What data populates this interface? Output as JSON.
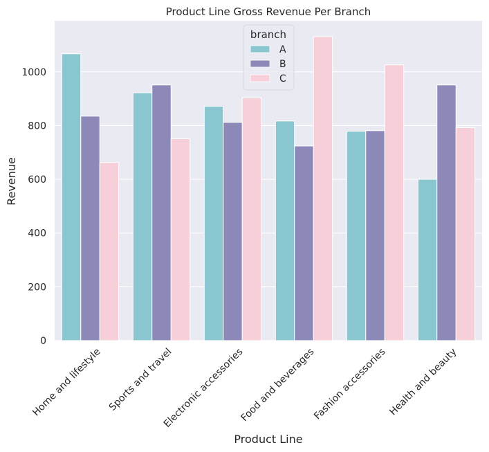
{
  "chart_data": {
    "type": "bar",
    "title": "Product Line Gross Revenue Per Branch",
    "xlabel": "Product Line",
    "ylabel": "Revenue",
    "categories": [
      "Home and lifestyle",
      "Sports and travel",
      "Electronic accessories",
      "Food and beverages",
      "Fashion accessories",
      "Health and beauty"
    ],
    "series": [
      {
        "name": "A",
        "color": "#8ac6d0",
        "values": [
          1067,
          922,
          872,
          817,
          779,
          600
        ]
      },
      {
        "name": "B",
        "color": "#8c88b8",
        "values": [
          835,
          951,
          812,
          724,
          781,
          951
        ]
      },
      {
        "name": "C",
        "color": "#f6cfd8",
        "values": [
          663,
          751,
          903,
          1131,
          1026,
          792
        ]
      }
    ],
    "ylim": [
      0,
      1190
    ],
    "yticks": [
      0,
      200,
      400,
      600,
      800,
      1000
    ],
    "grid": true,
    "legend": {
      "title": "branch",
      "placement": "top-center"
    },
    "background_color": "#eaeaf2",
    "grid_color": "#ffffff"
  }
}
